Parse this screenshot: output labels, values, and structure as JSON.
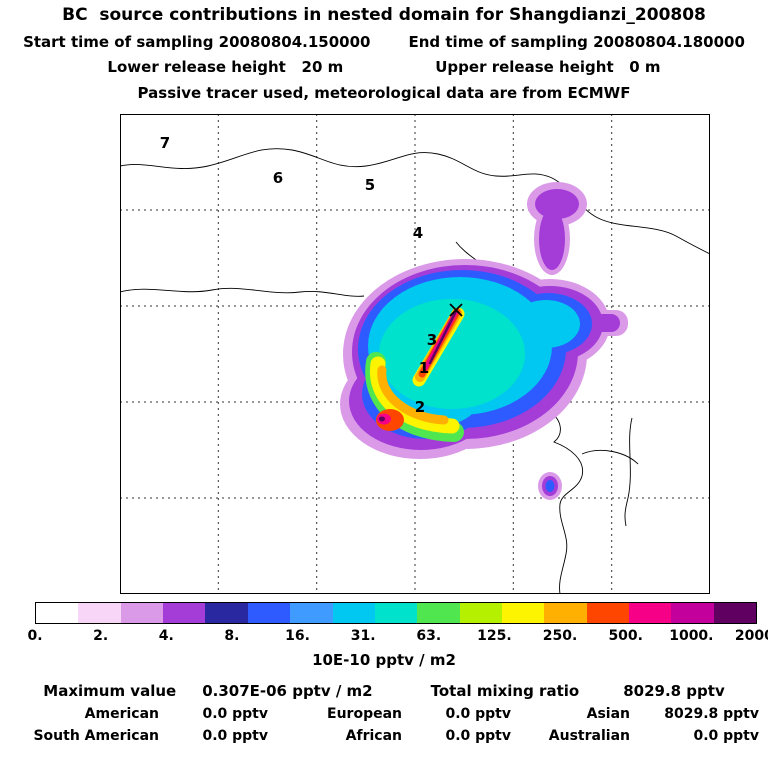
{
  "header": {
    "title": "BC  source contributions in nested domain for Shangdianzi_200808",
    "start_time": "Start time of sampling 20080804.150000",
    "end_time": "End time of sampling 20080804.180000",
    "lower_release": "Lower release height   20 m",
    "upper_release": "Upper release height   0 m",
    "tracer_line": "Passive tracer used, meteorological data are from ECMWF"
  },
  "map": {
    "region_labels": [
      {
        "label": "7"
      },
      {
        "label": "6"
      },
      {
        "label": "5"
      },
      {
        "label": "4"
      },
      {
        "label": "3"
      },
      {
        "label": "1"
      },
      {
        "label": "2"
      }
    ],
    "receptor_marker": "x"
  },
  "colorbar": {
    "ticks": [
      "0.",
      "2.",
      "4.",
      "8.",
      "16.",
      "31.",
      "63.",
      "125.",
      "250.",
      "500.",
      "1000.",
      "2000."
    ],
    "colors": [
      "#ffffff",
      "#f8d6f8",
      "#da9ae8",
      "#a43cd8",
      "#2a28a0",
      "#2e5bff",
      "#3f9bff",
      "#00c8f0",
      "#00e2cc",
      "#50e650",
      "#b4f000",
      "#fcf400",
      "#ffb000",
      "#ff4600",
      "#f50087",
      "#c4009c",
      "#600060"
    ],
    "units": "10E-10 pptv / m2"
  },
  "stats": {
    "max_label": "Maximum value",
    "max_value": "0.307E-06 pptv / m2",
    "total_label": "Total mixing ratio",
    "total_value": "8029.8 pptv",
    "rows": [
      {
        "c1": "American",
        "v1": "0.0 pptv",
        "c2": "European",
        "v2": "0.0 pptv",
        "c3": "Asian",
        "v3": "8029.8 pptv"
      },
      {
        "c1": "South American",
        "v1": "0.0 pptv",
        "c2": "African",
        "v2": "0.0 pptv",
        "c3": "Australian",
        "v3": "0.0 pptv"
      }
    ]
  },
  "chart_data": {
    "type": "heatmap",
    "title": "BC source contributions in nested domain for Shangdianzi_200808",
    "subtitle_lines": [
      "Start time of sampling 20080804.150000",
      "End time of sampling 20080804.180000",
      "Lower release height 20 m",
      "Upper release height 0 m",
      "Passive tracer used, meteorological data are from ECMWF"
    ],
    "colorbar_levels": [
      0,
      2,
      4,
      8,
      16,
      31,
      63,
      125,
      250,
      500,
      1000,
      2000
    ],
    "colorbar_units": "10E-10 pptv / m2",
    "maximum_value": "0.307E-06 pptv / m2",
    "total_mixing_ratio_pptv": 8029.8,
    "contributions_pptv": {
      "American": 0.0,
      "European": 0.0,
      "Asian": 8029.8,
      "South American": 0.0,
      "African": 0.0,
      "Australian": 0.0
    },
    "map_region_numbers": [
      "1",
      "2",
      "3",
      "4",
      "5",
      "6",
      "7"
    ],
    "receptor_station": "Shangdianzi",
    "legend_position": "bottom",
    "grid": true,
    "plume_description": "Source contribution plume over eastern China / Bohai region; maximum values along back-trajectory streak ending at receptor x near region 3"
  }
}
